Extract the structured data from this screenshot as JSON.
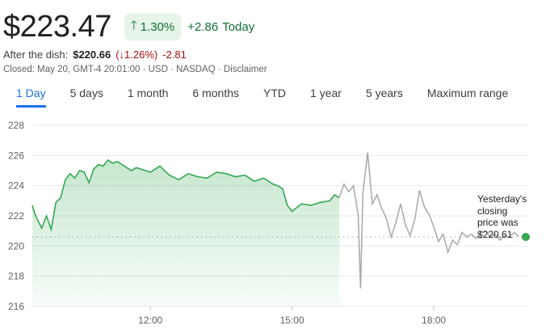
{
  "quote": {
    "price": "$223.47",
    "change_pct": "1.30%",
    "change_abs": "+2.86",
    "today_label": "Today"
  },
  "after_hours": {
    "label": "After the dish:",
    "price": "$220.66",
    "pct": "(↓1.26%)",
    "abs": "-2.81"
  },
  "meta": "Closed: May 20, GMT-4 20:01:00 · USD · NASDAQ · Disclaimer",
  "tabs": [
    {
      "label": "1 Day",
      "active": true
    },
    {
      "label": "5 days"
    },
    {
      "label": "1 month"
    },
    {
      "label": "6 months"
    },
    {
      "label": "YTD"
    },
    {
      "label": "1 year"
    },
    {
      "label": "5 years"
    },
    {
      "label": "Maximum range"
    }
  ],
  "colors": {
    "up": "#137333",
    "down": "#a50e0e",
    "accent": "#1a73e8",
    "line_session": "#34a853",
    "line_extended": "#a8a8a8"
  },
  "note": {
    "line1": "Yesterday's",
    "line2": "closing",
    "line3": "price was",
    "line4": "$220.61"
  },
  "chart_data": {
    "type": "line",
    "ylim": [
      216,
      228
    ],
    "yticks": [
      "216",
      "218",
      "220",
      "222",
      "224",
      "226",
      "228"
    ],
    "xtick_labels": [
      "12:00",
      "15:00",
      "18:00"
    ],
    "xtick_hours": [
      12,
      15,
      18
    ],
    "xlim": [
      9.5,
      20.0
    ],
    "previous_close": 220.61,
    "grid": true,
    "series": [
      {
        "segment": "regular",
        "x": [
          9.5,
          9.55,
          9.6,
          9.7,
          9.8,
          9.9,
          10.0,
          10.1,
          10.2,
          10.3,
          10.4,
          10.5,
          10.6,
          10.7,
          10.8,
          10.9,
          11.0,
          11.1,
          11.2,
          11.3,
          11.4,
          11.5,
          11.6,
          11.7,
          11.8,
          12.0,
          12.2,
          12.4,
          12.6,
          12.8,
          13.0,
          13.2,
          13.4,
          13.6,
          13.8,
          14.0,
          14.2,
          14.4,
          14.6,
          14.7,
          14.8,
          14.9,
          15.0,
          15.2,
          15.4,
          15.6,
          15.8,
          15.9,
          16.0
        ],
        "values": [
          222.7,
          222.2,
          221.8,
          221.2,
          222.0,
          221.1,
          222.9,
          223.2,
          224.4,
          224.8,
          224.5,
          225.0,
          224.9,
          224.2,
          225.1,
          225.4,
          225.3,
          225.7,
          225.5,
          225.6,
          225.4,
          225.2,
          225.0,
          225.2,
          225.1,
          224.9,
          225.3,
          224.7,
          224.4,
          224.8,
          224.6,
          224.5,
          224.9,
          224.8,
          224.6,
          224.7,
          224.3,
          224.5,
          224.1,
          224.0,
          223.8,
          222.7,
          222.3,
          222.8,
          222.7,
          222.9,
          223.0,
          223.4,
          223.2
        ]
      },
      {
        "segment": "extended",
        "x": [
          16.0,
          16.1,
          16.2,
          16.3,
          16.4,
          16.45,
          16.5,
          16.6,
          16.7,
          16.8,
          16.9,
          17.0,
          17.1,
          17.2,
          17.3,
          17.4,
          17.5,
          17.6,
          17.7,
          17.8,
          17.9,
          18.0,
          18.1,
          18.2,
          18.3,
          18.4,
          18.5,
          18.6,
          18.7,
          18.8,
          18.9,
          19.0,
          19.1,
          19.2,
          19.3,
          19.4,
          19.5,
          19.6,
          19.7,
          19.8
        ],
        "values": [
          223.2,
          224.1,
          223.6,
          224.0,
          222.1,
          217.2,
          223.5,
          226.2,
          222.8,
          223.4,
          222.5,
          221.8,
          220.6,
          221.6,
          222.8,
          221.4,
          220.7,
          221.8,
          223.7,
          222.6,
          222.1,
          221.3,
          220.3,
          220.8,
          219.6,
          220.4,
          220.1,
          220.9,
          220.6,
          220.8,
          220.5,
          220.9,
          221.0,
          220.6,
          220.8,
          220.4,
          220.7,
          220.6,
          220.9,
          220.66
        ]
      }
    ]
  }
}
